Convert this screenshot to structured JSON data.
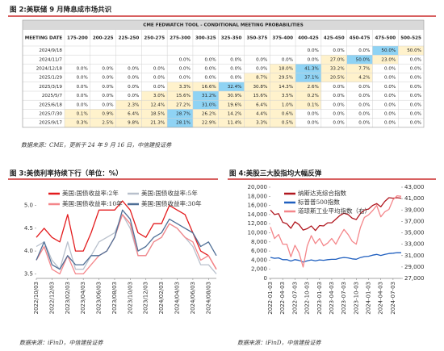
{
  "figure2": {
    "title": "图 2:美联储 9 月降息成市场共识",
    "colors": {
      "zero": "#ffffff",
      "nonzero": "#fff2cc",
      "max": "#8fd3f4",
      "title_bar": "#d9d9d9"
    },
    "table": {
      "title": "CME FEDWATCH TOOL - CONDITIONAL MEETING PROBABILITIES",
      "header": [
        "MEETING DATE",
        "175-200",
        "200-225",
        "225-250",
        "250-275",
        "275-300",
        "300-325",
        "325-350",
        "350-375",
        "375-400",
        "400-425",
        "425-450",
        "450-475",
        "475-500",
        "500-525"
      ],
      "rows": [
        {
          "date": "2024/9/18",
          "cells": [
            null,
            null,
            null,
            null,
            null,
            null,
            null,
            null,
            null,
            "0.0%",
            "0.0%",
            "0.0%",
            "50.0%",
            "50.0%"
          ]
        },
        {
          "date": "2024/11/7",
          "cells": [
            null,
            null,
            null,
            null,
            "0.0%",
            "0.0%",
            "0.0%",
            "0.0%",
            "0.0%",
            "0.0%",
            "27.0%",
            "50.0%",
            "23.0%",
            "0.0%"
          ]
        },
        {
          "date": "2024/12/18",
          "cells": [
            "0.0%",
            "0.0%",
            "0.0%",
            "0.0%",
            "0.0%",
            "0.0%",
            "0.0%",
            "0.0%",
            "18.0%",
            "41.3%",
            "33.2%",
            "7.7%",
            "0.0%",
            "0.0%"
          ]
        },
        {
          "date": "2025/1/29",
          "cells": [
            "0.0%",
            "0.0%",
            "0.0%",
            "0.0%",
            "0.0%",
            "0.0%",
            "0.0%",
            "8.7%",
            "29.5%",
            "37.1%",
            "20.5%",
            "4.2%",
            "0.0%",
            "0.0%"
          ]
        },
        {
          "date": "2025/3/19",
          "cells": [
            "0.0%",
            "0.0%",
            "0.0%",
            "0.0%",
            "3.3%",
            "16.6%",
            "32.4%",
            "30.8%",
            "14.3%",
            "2.6%",
            "0.0%",
            "0.0%",
            "0.0%",
            "0.0%"
          ]
        },
        {
          "date": "2025/5/7",
          "cells": [
            "0.0%",
            "0.0%",
            "0.0%",
            "3.0%",
            "15.6%",
            "31.2%",
            "30.9%",
            "15.6%",
            "3.5%",
            "0.2%",
            "0.0%",
            "0.0%",
            "0.0%",
            "0.0%"
          ]
        },
        {
          "date": "2025/6/18",
          "cells": [
            "0.0%",
            "0.0%",
            "2.3%",
            "12.4%",
            "27.2%",
            "31.0%",
            "19.6%",
            "6.4%",
            "1.0%",
            "0.1%",
            "0.0%",
            "0.0%",
            "0.0%",
            "0.0%"
          ]
        },
        {
          "date": "2025/7/30",
          "cells": [
            "0.1%",
            "0.9%",
            "6.4%",
            "18.5%",
            "28.7%",
            "26.2%",
            "14.2%",
            "4.4%",
            "0.6%",
            "0.0%",
            "0.0%",
            "0.0%",
            "0.0%",
            "0.0%"
          ]
        },
        {
          "date": "2025/9/17",
          "cells": [
            "0.3%",
            "2.5%",
            "9.8%",
            "21.3%",
            "28.1%",
            "22.9%",
            "11.4%",
            "3.3%",
            "0.5%",
            "0.0%",
            "0.0%",
            "0.0%",
            "0.0%",
            "0.0%"
          ]
        }
      ]
    },
    "source": "数据来源：CME，更新于 24 年 9 月 16 日，中信建投证券"
  },
  "chart_data": [
    {
      "type": "line",
      "title": "图 3:美债利率持续下行（单位：%）",
      "x": [
        "2022/10/03",
        "2022/11/03",
        "2022/12/03",
        "2023/01/03",
        "2023/02/03",
        "2023/03/03",
        "2023/04/03",
        "2023/05/03",
        "2023/06/03",
        "2023/07/03",
        "2023/08/03",
        "2023/09/03",
        "2023/10/03",
        "2023/11/03",
        "2023/12/03",
        "2024/01/03",
        "2024/02/03",
        "2024/03/03",
        "2024/04/03",
        "2024/05/03",
        "2024/06/03",
        "2024/07/03",
        "2024/08/03",
        "2024/09/03"
      ],
      "xticks": [
        "2022/10/03",
        "2022/12/03",
        "2023/02/03",
        "2023/04/03",
        "2023/06/03",
        "2023/08/03",
        "2023/10/03",
        "2023/12/03",
        "2024/02/03",
        "2024/04/03",
        "2024/06/03",
        "2024/08/03"
      ],
      "ylim": [
        3.4,
        5.4
      ],
      "yticks": [
        3.5,
        {
          "value": 4,
          "label": "4.0"
        },
        4.5,
        {
          "value": 5,
          "label": "5.0"
        }
      ],
      "series": [
        {
          "name": "美国:国债收益率:2年",
          "color": "#e31a1c",
          "values": [
            4.3,
            4.5,
            4.3,
            4.2,
            4.8,
            4.0,
            4.0,
            4.4,
            4.9,
            4.9,
            4.9,
            5.1,
            4.9,
            4.4,
            4.3,
            4.6,
            4.6,
            5.0,
            4.9,
            4.8,
            4.4,
            4.0,
            3.9,
            3.6
          ]
        },
        {
          "name": "美国:国债收益率:5年",
          "color": "#b8c0cc",
          "values": [
            4.1,
            4.2,
            3.8,
            3.6,
            4.2,
            3.6,
            3.6,
            3.9,
            4.2,
            4.3,
            4.4,
            4.8,
            4.5,
            3.9,
            3.9,
            4.2,
            4.3,
            4.6,
            4.5,
            4.3,
            4.1,
            3.7,
            3.7,
            3.5
          ]
        },
        {
          "name": "美国:国债收益率:10年",
          "color": "#f4868a",
          "values": [
            3.8,
            4.1,
            3.6,
            3.5,
            3.9,
            3.5,
            3.5,
            3.7,
            3.9,
            4.0,
            4.3,
            4.8,
            4.6,
            3.9,
            3.9,
            4.2,
            4.3,
            4.6,
            4.5,
            4.3,
            4.2,
            3.8,
            3.9,
            3.6
          ]
        },
        {
          "name": "美国:国债收益率:30年",
          "color": "#4f6f96",
          "values": [
            3.8,
            4.2,
            3.7,
            3.6,
            3.9,
            3.7,
            3.7,
            3.9,
            3.9,
            4.0,
            4.3,
            4.9,
            4.7,
            4.0,
            4.1,
            4.3,
            4.4,
            4.7,
            4.6,
            4.5,
            4.4,
            4.1,
            4.2,
            3.9
          ]
        }
      ],
      "source": "数据来源：iFinD，中信建投证券"
    },
    {
      "type": "line",
      "title": "图 4:美股三大股指均大幅反弹",
      "x": [
        "2022-01-03",
        "2022-02-03",
        "2022-03-03",
        "2022-04-03",
        "2022-05-03",
        "2022-06-03",
        "2022-07-03",
        "2022-08-03",
        "2022-09-03",
        "2022-10-03",
        "2022-11-03",
        "2022-12-03",
        "2023-01-03",
        "2023-02-03",
        "2023-03-03",
        "2023-04-03",
        "2023-05-03",
        "2023-06-03",
        "2023-07-03",
        "2023-08-03",
        "2023-09-03",
        "2023-10-03",
        "2023-11-03",
        "2023-12-03",
        "2024-01-03",
        "2024-02-03",
        "2024-03-03",
        "2024-04-03",
        "2024-05-03",
        "2024-06-03",
        "2024-07-03",
        "2024-08-03",
        "2024-09-03"
      ],
      "xticks": [
        "2022-01-03",
        "2022-04-03",
        "2022-07-03",
        "2022-10-03",
        "2023-01-03",
        "2023-04-03",
        "2023-07-03",
        "2023-10-03",
        "2024-01-03",
        "2024-04-03",
        "2024-07-03"
      ],
      "ylim": [
        0,
        20000
      ],
      "yticks": [
        0,
        {
          "value": 2000,
          "label": "2,000"
        },
        {
          "value": 4000,
          "label": "4,000"
        },
        {
          "value": 6000,
          "label": "6,000"
        },
        {
          "value": 8000,
          "label": "8,000"
        },
        {
          "value": 10000,
          "label": "10,000"
        },
        {
          "value": 12000,
          "label": "12,000"
        },
        {
          "value": 14000,
          "label": "14,000"
        },
        {
          "value": 16000,
          "label": "16,000"
        },
        {
          "value": 18000,
          "label": "18,000"
        },
        {
          "value": 20000,
          "label": "20,000"
        }
      ],
      "y2lim": [
        27000,
        43000
      ],
      "y2ticks": [
        {
          "value": 27000,
          "label": "27,000"
        },
        {
          "value": 29000,
          "label": "29,000"
        },
        {
          "value": 31000,
          "label": "31,000"
        },
        {
          "value": 33000,
          "label": "33,000"
        },
        {
          "value": 35000,
          "label": "35,000"
        },
        {
          "value": 37000,
          "label": "37,000"
        },
        {
          "value": 39000,
          "label": "39,000"
        },
        {
          "value": 41000,
          "label": "41,000"
        },
        {
          "value": 43000,
          "label": "43,000"
        }
      ],
      "series": [
        {
          "name": "纳斯达克综合指数",
          "color": "#b0171f",
          "values": [
            15000,
            14000,
            14200,
            12300,
            12000,
            11000,
            12400,
            11800,
            10600,
            10900,
            11500,
            10500,
            11600,
            11500,
            12200,
            12200,
            13000,
            13800,
            14300,
            14000,
            13200,
            12900,
            14200,
            15000,
            15200,
            16000,
            16400,
            15700,
            16900,
            17700,
            17600,
            17700,
            17600
          ]
        },
        {
          "name": "标普普500指数",
          "color": "#1f5fbf",
          "values": [
            4600,
            4400,
            4500,
            4100,
            4100,
            3800,
            4100,
            3950,
            3600,
            3850,
            4050,
            3850,
            4050,
            3970,
            4100,
            4170,
            4180,
            4450,
            4590,
            4500,
            4290,
            4190,
            4560,
            4770,
            4850,
            5100,
            5250,
            5030,
            5280,
            5460,
            5520,
            5650,
            5620
          ]
        },
        {
          "name": "道琼斯工业平均指数（右）",
          "color": "#f4868a",
          "axis": "y2",
          "values": [
            36000,
            34000,
            34700,
            33000,
            33000,
            30800,
            32800,
            31500,
            29000,
            32700,
            34500,
            33100,
            34000,
            32700,
            33200,
            34000,
            33000,
            34400,
            35600,
            34700,
            33500,
            33000,
            35900,
            37700,
            38150,
            38900,
            39800,
            37800,
            38700,
            39100,
            40800,
            41500,
            41400
          ]
        }
      ],
      "source": "数据来源：iFinD，中信建投证券"
    }
  ]
}
